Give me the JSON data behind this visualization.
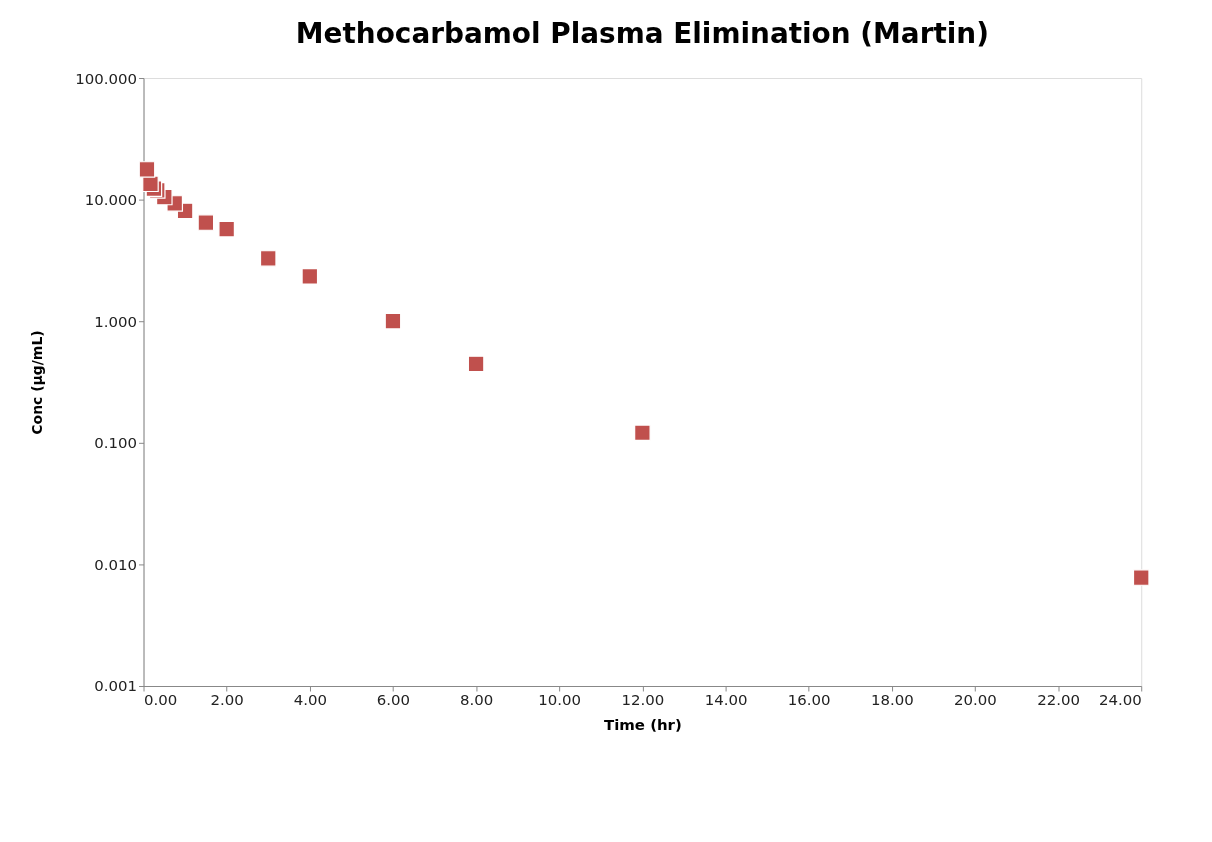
{
  "chart_data": {
    "type": "scatter",
    "title": "Methocarbamol Plasma Elimination (Martin)",
    "xlabel": "Time (hr)",
    "ylabel": "Conc (µg/mL)",
    "x": [
      0.083,
      0.167,
      0.25,
      0.33,
      0.5,
      0.75,
      1.0,
      1.5,
      2.0,
      3.0,
      4.0,
      6.0,
      8.0,
      12.0,
      24.0
    ],
    "series": [
      {
        "color": "#c0504d",
        "values": [
          17.7,
          13.5,
          12.3,
          11.9,
          10.5,
          9.3,
          8.07,
          6.48,
          5.71,
          3.28,
          2.34,
          1.0,
          0.445,
          0.121,
          0.0078
        ]
      }
    ],
    "log": "y",
    "marker": "square",
    "grid": false,
    "xlim": [
      0,
      24
    ],
    "xticks": [
      {
        "value": 0,
        "label": "0.00"
      },
      {
        "value": 2,
        "label": "2.00"
      },
      {
        "value": 4,
        "label": "4.00"
      },
      {
        "value": 6,
        "label": "6.00"
      },
      {
        "value": 8,
        "label": "8.00"
      },
      {
        "value": 10,
        "label": "10.00"
      },
      {
        "value": 12,
        "label": "12.00"
      },
      {
        "value": 14,
        "label": "14.00"
      },
      {
        "value": 16,
        "label": "16.00"
      },
      {
        "value": 18,
        "label": "18.00"
      },
      {
        "value": 20,
        "label": "20.00"
      },
      {
        "value": 22,
        "label": "22.00"
      },
      {
        "value": 24,
        "label": "24.00"
      }
    ],
    "ylim": [
      0.001,
      100
    ],
    "yticks": [
      {
        "value": 0.001,
        "label": "0.001"
      },
      {
        "value": 0.01,
        "label": "0.010"
      },
      {
        "value": 0.1,
        "label": "0.100"
      },
      {
        "value": 1,
        "label": "1.000"
      },
      {
        "value": 10,
        "label": "10.000"
      },
      {
        "value": 100,
        "label": "100.000"
      }
    ]
  }
}
